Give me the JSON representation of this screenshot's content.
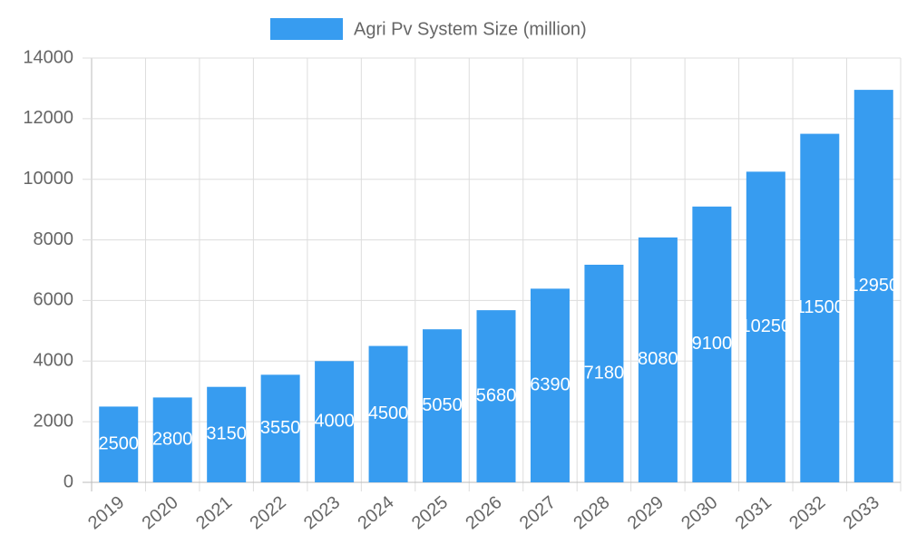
{
  "chart_data": {
    "type": "bar",
    "legend": "Agri Pv System Size (million)",
    "categories": [
      "2019",
      "2020",
      "2021",
      "2022",
      "2023",
      "2024",
      "2025",
      "2026",
      "2027",
      "2028",
      "2029",
      "2030",
      "2031",
      "2032",
      "2033"
    ],
    "values": [
      2500,
      2800,
      3150,
      3550,
      4000,
      4500,
      5050,
      5680,
      6390,
      7180,
      8080,
      9100,
      10250,
      11500,
      12950
    ],
    "color": "#379cf0",
    "ylim": [
      0,
      14000
    ],
    "yticks": [
      0,
      2000,
      4000,
      6000,
      8000,
      10000,
      12000,
      14000
    ],
    "grid": true,
    "data_labels": true
  }
}
